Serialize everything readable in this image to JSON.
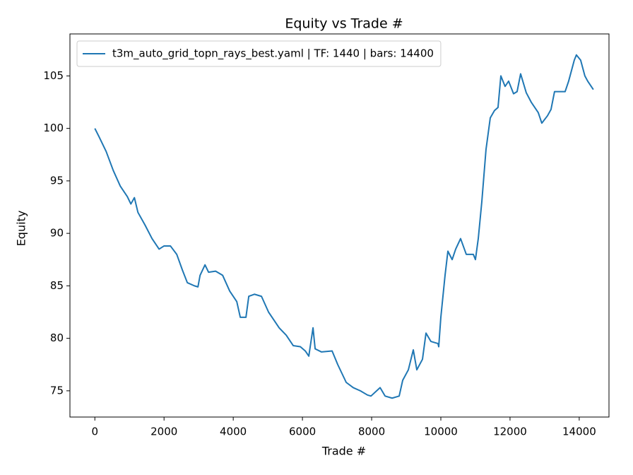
{
  "chart_data": {
    "type": "line",
    "title": "Equity vs Trade #",
    "x_label": "Trade #",
    "y_label": "Equity",
    "xlim": [
      -720,
      14860
    ],
    "ylim": [
      72.5,
      109.0
    ],
    "xticks": [
      0,
      2000,
      4000,
      6000,
      8000,
      10000,
      12000,
      14000
    ],
    "yticks": [
      75,
      80,
      85,
      90,
      95,
      100,
      105
    ],
    "legend": "upper left",
    "series": [
      {
        "name": "t3m_auto_grid_topn_rays_best.yaml | TF: 1440 | bars: 14400",
        "color": "#1f77b4",
        "x": [
          0,
          122,
          327,
          531,
          735,
          939,
          1041,
          1143,
          1245,
          1449,
          1653,
          1857,
          2000,
          2184,
          2367,
          2531,
          2673,
          2878,
          2980,
          3041,
          3184,
          3286,
          3490,
          3694,
          3898,
          4102,
          4204,
          4367,
          4449,
          4612,
          4816,
          5020,
          5327,
          5531,
          5735,
          5939,
          6082,
          6184,
          6306,
          6367,
          6551,
          6857,
          7020,
          7265,
          7469,
          7673,
          7878,
          7980,
          8245,
          8388,
          8592,
          8796,
          8898,
          9061,
          9204,
          9306,
          9469,
          9571,
          9714,
          9918,
          9939,
          10000,
          10122,
          10204,
          10327,
          10429,
          10571,
          10735,
          10939,
          11000,
          11082,
          11184,
          11306,
          11347,
          11429,
          11551,
          11653,
          11735,
          11857,
          11959,
          12102,
          12204,
          12306,
          12469,
          12612,
          12816,
          12918,
          13082,
          13184,
          13286,
          13592,
          13694,
          13857,
          13918,
          14041,
          14163,
          14245,
          14408
        ],
        "values": [
          100,
          99.2,
          97.8,
          96,
          94.5,
          93.5,
          92.8,
          93.4,
          92,
          90.8,
          89.5,
          88.5,
          88.8,
          88.8,
          88,
          86.5,
          85.3,
          85,
          84.9,
          86,
          87,
          86.3,
          86.4,
          86,
          84.5,
          83.5,
          82,
          82,
          84,
          84.2,
          84,
          82.5,
          81,
          80.3,
          79.3,
          79.2,
          78.8,
          78.3,
          81,
          79,
          78.7,
          78.8,
          77.5,
          75.8,
          75.3,
          75,
          74.6,
          74.5,
          75.3,
          74.5,
          74.3,
          74.5,
          76,
          77,
          78.9,
          77,
          78,
          80.5,
          79.7,
          79.5,
          79.2,
          82,
          86,
          88.3,
          87.5,
          88.5,
          89.5,
          88,
          88,
          87.5,
          89.5,
          93,
          98,
          99,
          101,
          101.7,
          102,
          105,
          104,
          104.5,
          103.3,
          103.5,
          105.2,
          103.4,
          102.5,
          101.5,
          100.5,
          101.2,
          101.8,
          103.5,
          103.5,
          104.5,
          106.5,
          107,
          106.5,
          105,
          104.5,
          103.7
        ]
      }
    ]
  }
}
